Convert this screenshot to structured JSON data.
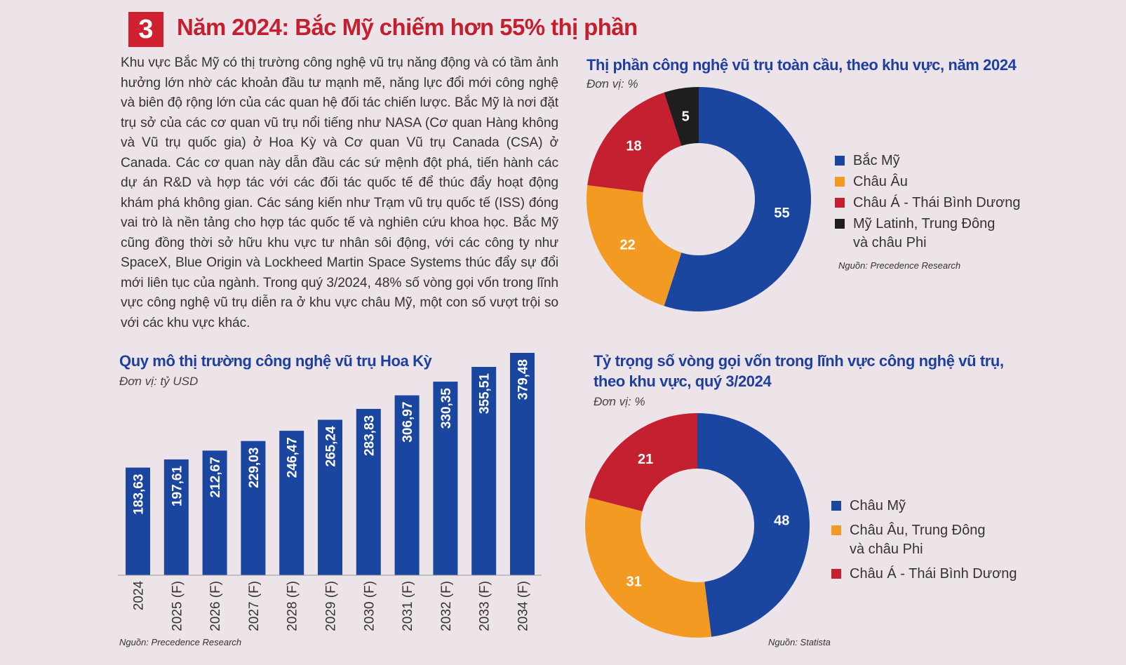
{
  "header": {
    "number": "3",
    "title": "Năm 2024: Bắc Mỹ chiếm hơn 55% thị phần"
  },
  "body_text": "Khu vực Bắc Mỹ có thị trường công nghệ vũ trụ năng động và có tầm ảnh hưởng lớn nhờ các khoản đầu tư mạnh mẽ, năng lực đổi mới công nghệ và biên độ rộng lớn của các quan hệ đối tác chiến lược. Bắc Mỹ là nơi đặt trụ sở của các cơ quan vũ trụ nổi tiếng như NASA (Cơ quan Hàng không và Vũ trụ quốc gia) ở Hoa Kỳ và Cơ quan Vũ trụ Canada (CSA) ở Canada. Các cơ quan này dẫn đầu các sứ mệnh đột phá, tiến hành các dự án R&D và hợp tác với các đối tác quốc tế để thúc đẩy hoạt động khám phá không gian. Các sáng kiến như Trạm vũ trụ quốc tế (ISS) đóng vai trò là nền tảng cho hợp tác quốc tế và nghiên cứu khoa học. Bắc Mỹ cũng đồng thời sở hữu khu vực tư nhân sôi động, với các công ty như SpaceX, Blue Origin và Lockheed Martin Space Systems thúc đẩy sự đổi mới liên tục của ngành. Trong quý 3/2024, 48% số vòng gọi vốn trong lĩnh vực công nghệ vũ trụ diễn ra ở khu vực châu Mỹ, một con số vượt trội so với các khu vực khác.",
  "colors": {
    "blue": "#1b46a0",
    "orange": "#f39a22",
    "red": "#c42030",
    "black": "#1e1e1e",
    "title": "#1f3f9e",
    "accent": "#d0202f"
  },
  "chart_data": [
    {
      "type": "pie",
      "title": "Thị phần công nghệ vũ trụ toàn cầu, theo khu vực, năm 2024",
      "unit": "Đơn vị: %",
      "source": "Nguồn: Precedence Research",
      "legend_position": "right",
      "slices": [
        {
          "label": "Bắc Mỹ",
          "value": 55,
          "color": "#1b46a0"
        },
        {
          "label": "Châu Âu",
          "value": 22,
          "color": "#f39a22"
        },
        {
          "label": "Châu Á - Thái Bình Dương",
          "value": 18,
          "color": "#c42030"
        },
        {
          "label": "Mỹ Latinh, Trung Đông\nvà châu Phi",
          "value": 5,
          "color": "#1e1e1e"
        }
      ]
    },
    {
      "type": "bar",
      "title": "Quy mô thị trường công nghệ vũ trụ Hoa Kỳ",
      "unit": "Đơn vị: tỷ USD",
      "source": "Nguồn: Precedence Research",
      "categories": [
        "2024",
        "2025 (F)",
        "2026 (F)",
        "2027 (F)",
        "2028 (F)",
        "2029 (F)",
        "2030 (F)",
        "2031 (F)",
        "2032 (F)",
        "2033 (F)",
        "2034 (F)"
      ],
      "values": [
        183.63,
        197.61,
        212.67,
        229.03,
        246.47,
        265.24,
        283.83,
        306.97,
        330.35,
        355.51,
        379.48
      ],
      "value_labels": [
        "183,63",
        "197,61",
        "212,67",
        "229,03",
        "246,47",
        "265,24",
        "283,83",
        "306,97",
        "330,35",
        "355,51",
        "379,48"
      ],
      "color": "#1b46a0",
      "ylim": [
        0,
        379.48
      ],
      "grid": false
    },
    {
      "type": "pie",
      "title": "Tỷ trọng số vòng gọi vốn trong lĩnh vực công nghệ vũ trụ,\ntheo khu vực, quý 3/2024",
      "unit": "Đơn vị: %",
      "source": "Nguồn: Statista",
      "legend_position": "right",
      "slices": [
        {
          "label": "Châu Mỹ",
          "value": 48,
          "color": "#1b46a0"
        },
        {
          "label": "Châu Âu, Trung Đông\nvà châu Phi",
          "value": 31,
          "color": "#f39a22"
        },
        {
          "label": "Châu Á - Thái Bình Dương",
          "value": 21,
          "color": "#c42030"
        }
      ]
    }
  ]
}
